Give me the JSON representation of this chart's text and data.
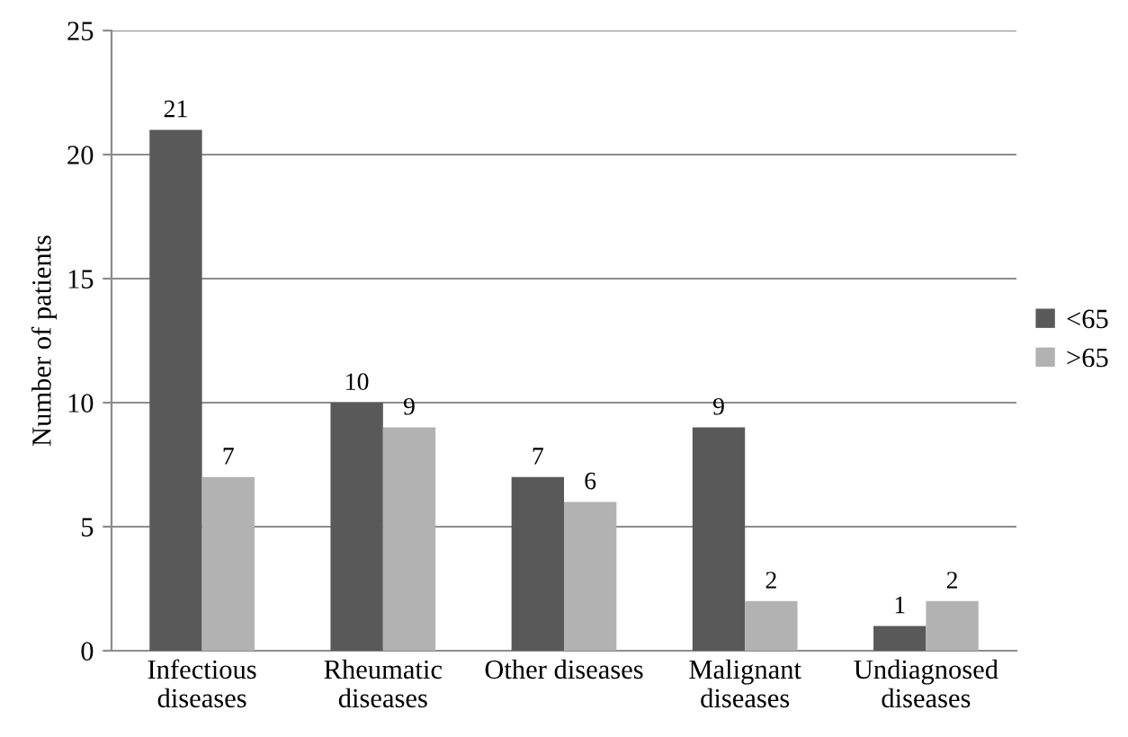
{
  "chart_data": {
    "type": "bar",
    "categories": [
      "Infectious\ndiseases",
      "Rheumatic\ndiseases",
      "Other diseases",
      "Malignant\ndiseases",
      "Undiagnosed\ndiseases"
    ],
    "series": [
      {
        "name": "<65",
        "color": "#595959",
        "values": [
          21,
          10,
          7,
          9,
          1
        ]
      },
      {
        "name": ">65",
        "color": "#b2b2b2",
        "values": [
          7,
          9,
          6,
          2,
          2
        ]
      }
    ],
    "ylabel": "Number of patients",
    "ylim": [
      0,
      25
    ],
    "yticks": [
      0,
      5,
      10,
      15,
      20,
      25
    ],
    "grid": "y",
    "legend": "right",
    "data_labels": true
  }
}
